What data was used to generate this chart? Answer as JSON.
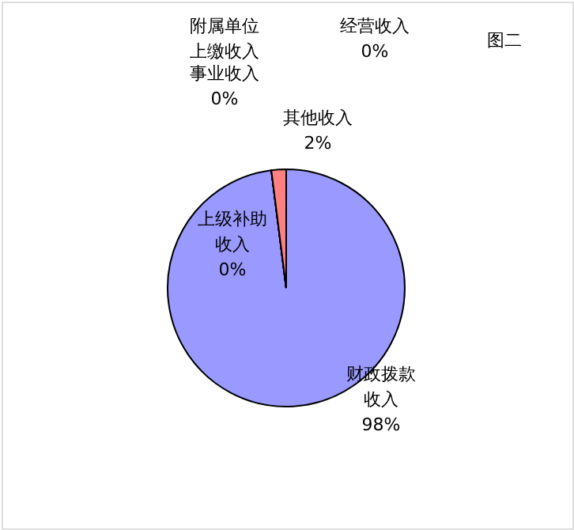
{
  "chart_data": {
    "type": "pie",
    "title": "图二",
    "categories": [
      "财政拨款收入",
      "上级补助收入",
      "事业收入",
      "经营收入",
      "附属单位上缴收入",
      "其他收入"
    ],
    "values": [
      98,
      0,
      0,
      0,
      0,
      2
    ],
    "colors": [
      "#9999ff",
      "#993366",
      "#ffffcc",
      "#ccffff",
      "#660066",
      "#ff8080"
    ],
    "value_labels": [
      "98%",
      "0%",
      "0%",
      "0%",
      null,
      "2%"
    ]
  }
}
